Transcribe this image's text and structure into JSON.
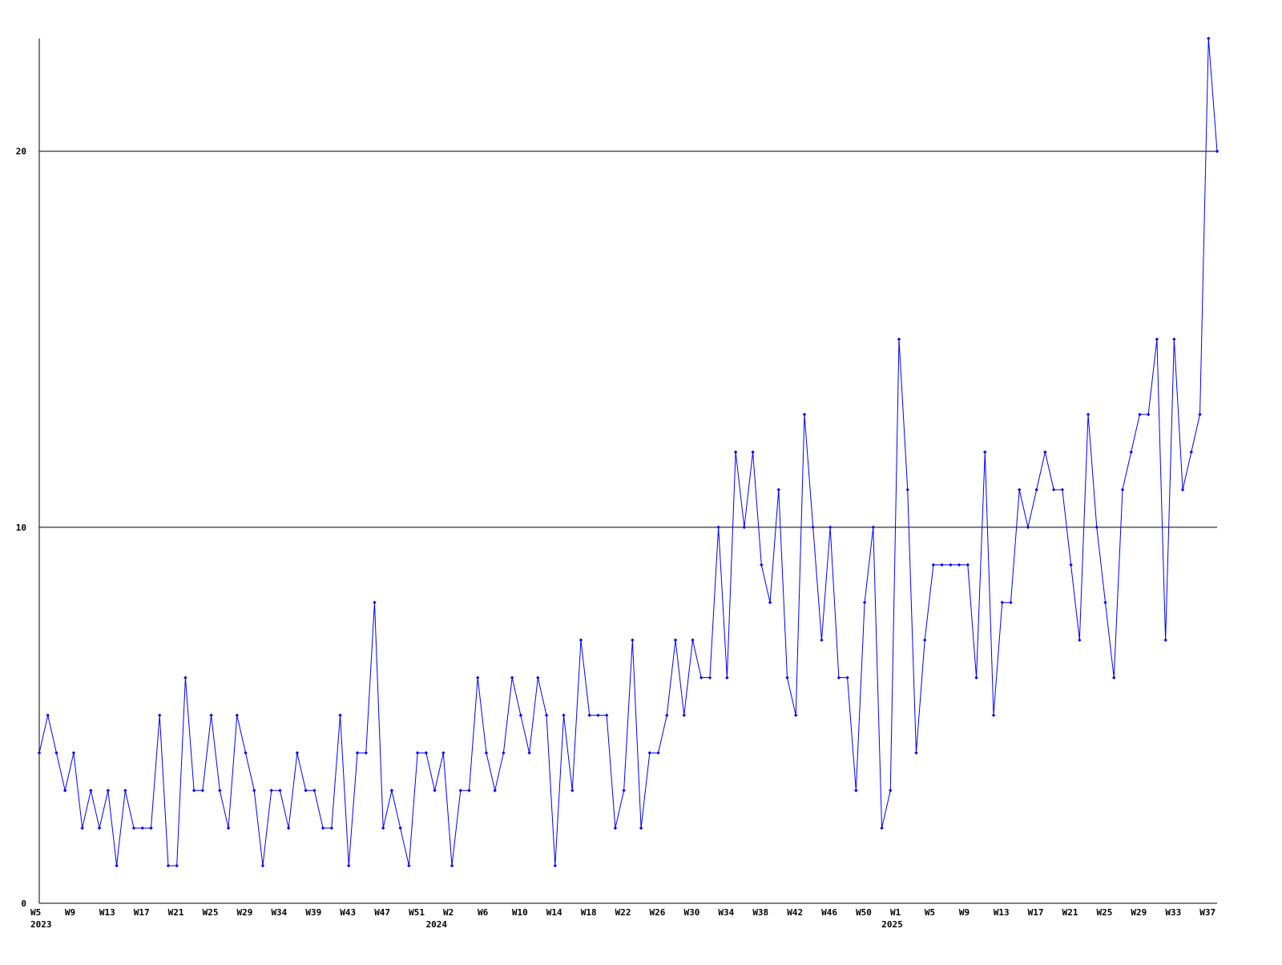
{
  "chart_data": {
    "type": "line",
    "categories": [
      "W5",
      null,
      null,
      null,
      "W9",
      null,
      null,
      null,
      "W13",
      null,
      null,
      null,
      "W17",
      null,
      null,
      null,
      "W21",
      null,
      null,
      null,
      "W25",
      null,
      null,
      null,
      "W29",
      null,
      null,
      null,
      "W34",
      null,
      null,
      null,
      "W39",
      null,
      null,
      null,
      "W43",
      null,
      null,
      null,
      "W47",
      null,
      null,
      null,
      "W51",
      null,
      null,
      null,
      "W2",
      null,
      null,
      null,
      "W6",
      null,
      null,
      null,
      "W10",
      null,
      null,
      null,
      "W14",
      null,
      null,
      null,
      "W18",
      null,
      null,
      null,
      "W22",
      null,
      null,
      null,
      "W26",
      null,
      null,
      null,
      "W30",
      null,
      null,
      null,
      "W34",
      null,
      null,
      null,
      "W38",
      null,
      null,
      null,
      "W42",
      null,
      null,
      null,
      "W46",
      null,
      null,
      null,
      "W50",
      null,
      null,
      null,
      "W1",
      null,
      null,
      null,
      "W5",
      null,
      null,
      null,
      "W9",
      null,
      null,
      null,
      "W13",
      null,
      null,
      null,
      "W17",
      null,
      null,
      null,
      "W21",
      null,
      null,
      null,
      "W25",
      null,
      null,
      null,
      "W29",
      null,
      null,
      null,
      "W33",
      null,
      null,
      null,
      "W37",
      null
    ],
    "category_years": [
      "2023",
      null,
      null,
      null,
      null,
      null,
      null,
      null,
      null,
      null,
      null,
      null,
      null,
      null,
      null,
      null,
      null,
      null,
      null,
      null,
      null,
      null,
      null,
      null,
      null,
      null,
      null,
      null,
      null,
      null,
      null,
      null,
      null,
      null,
      null,
      null,
      null,
      null,
      null,
      null,
      null,
      null,
      null,
      null,
      null,
      null,
      "2024",
      null,
      null,
      null,
      null,
      null,
      null,
      null,
      null,
      null,
      null,
      null,
      null,
      null,
      null,
      null,
      null,
      null,
      null,
      null,
      null,
      null,
      null,
      null,
      null,
      null,
      null,
      null,
      null,
      null,
      null,
      null,
      null,
      null,
      null,
      null,
      null,
      null,
      null,
      null,
      null,
      null,
      null,
      null,
      null,
      null,
      null,
      null,
      null,
      null,
      null,
      null,
      null,
      "2025",
      null,
      null,
      null,
      null,
      null,
      null,
      null,
      null,
      null,
      null,
      null,
      null,
      null,
      null,
      null,
      null,
      null,
      null,
      null,
      null,
      null,
      null,
      null,
      null,
      null,
      null,
      null,
      null,
      null,
      null,
      null,
      null,
      null,
      null,
      null,
      null,
      null,
      null
    ],
    "values": [
      4,
      5,
      4,
      3,
      4,
      2,
      3,
      2,
      3,
      1,
      3,
      2,
      2,
      2,
      5,
      1,
      1,
      6,
      3,
      3,
      5,
      3,
      2,
      5,
      4,
      3,
      1,
      3,
      3,
      2,
      4,
      3,
      3,
      2,
      2,
      5,
      1,
      4,
      4,
      8,
      2,
      3,
      2,
      1,
      4,
      4,
      3,
      4,
      1,
      3,
      3,
      6,
      4,
      3,
      4,
      6,
      5,
      4,
      6,
      5,
      1,
      5,
      3,
      7,
      5,
      5,
      5,
      2,
      3,
      7,
      2,
      4,
      4,
      5,
      7,
      5,
      7,
      6,
      6,
      10,
      6,
      12,
      10,
      12,
      9,
      8,
      11,
      6,
      5,
      13,
      10,
      7,
      10,
      6,
      6,
      3,
      8,
      10,
      2,
      3,
      15,
      11,
      4,
      7,
      9,
      9,
      9,
      9,
      9,
      6,
      12,
      5,
      8,
      8,
      11,
      10,
      11,
      12,
      11,
      11,
      9,
      7,
      13,
      10,
      8,
      6,
      11,
      12,
      13,
      13,
      15,
      7,
      15,
      11,
      12,
      13,
      23,
      20
    ],
    "color": "#0000ff",
    "ylim": [
      0,
      23
    ],
    "yticks": [
      0,
      10,
      20
    ],
    "grid": true
  }
}
